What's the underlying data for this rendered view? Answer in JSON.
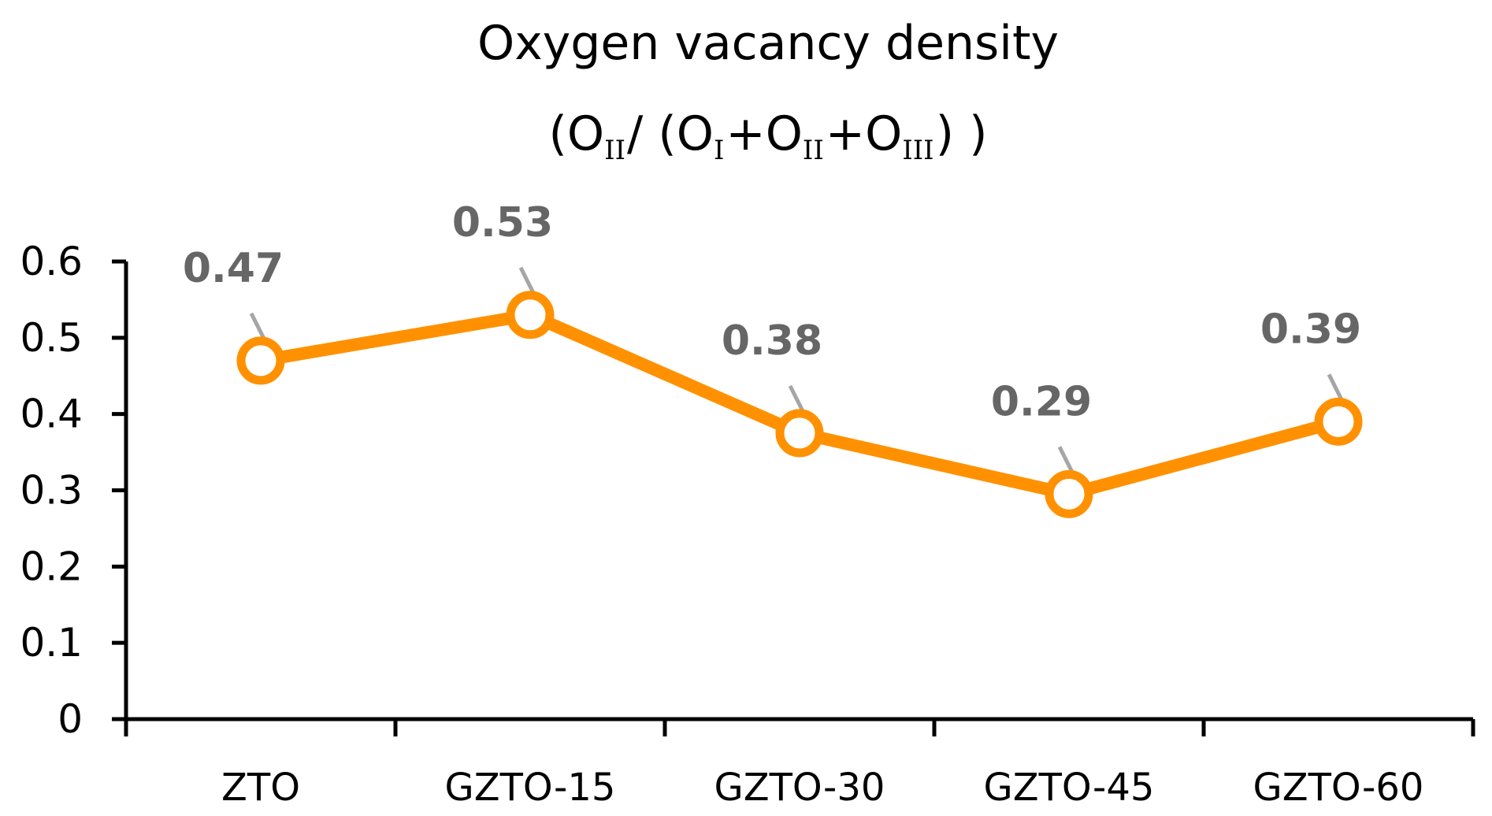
{
  "chart_data": {
    "type": "line",
    "title": "Oxygen vacancy density",
    "subtitle": {
      "open": "(",
      "parts": [
        {
          "text": "O",
          "sub": "II"
        },
        {
          "text": "/ ("
        },
        {
          "text": "O",
          "sub": "I"
        },
        {
          "text": "+"
        },
        {
          "text": "O",
          "sub": "II"
        },
        {
          "text": "+"
        },
        {
          "text": "O",
          "sub": "III"
        },
        {
          "text": ") )"
        }
      ]
    },
    "categories": [
      "ZTO",
      "GZTO-15",
      "GZTO-30",
      "GZTO-45",
      "GZTO-60"
    ],
    "series": [
      {
        "name": "Oxygen vacancy density",
        "values": [
          0.47,
          0.53,
          0.375,
          0.295,
          0.39
        ],
        "labels": [
          "0.47",
          "0.53",
          "0.38",
          "0.29",
          "0.39"
        ]
      }
    ],
    "yticks": [
      "0",
      "0.1",
      "0.2",
      "0.3",
      "0.4",
      "0.5",
      "0.6"
    ],
    "ylim": [
      0,
      0.6
    ],
    "xlabel": "",
    "ylabel": "",
    "grid": false,
    "legend": "none",
    "colors": {
      "line": "#FF9100",
      "marker_fill": "#FFFFFF",
      "label": "#666666",
      "leader": "#A6A6A6",
      "axis": "#000000"
    }
  }
}
